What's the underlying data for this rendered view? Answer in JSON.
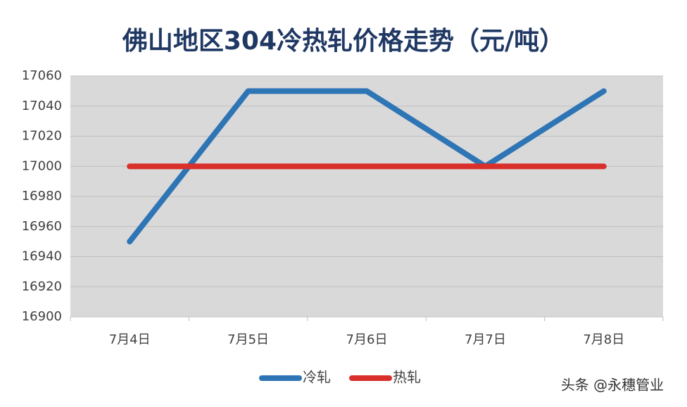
{
  "chart_data": {
    "type": "line",
    "title": "佛山地区304冷热轧价格走势（元/吨）",
    "categories": [
      "7月4日",
      "7月5日",
      "7月6日",
      "7月7日",
      "7月8日"
    ],
    "series": [
      {
        "name": "冷轧",
        "color": "#2e75b6",
        "values": [
          16950,
          17050,
          17050,
          17000,
          17050
        ]
      },
      {
        "name": "热轧",
        "color": "#d9302c",
        "values": [
          17000,
          17000,
          17000,
          17000,
          17000
        ]
      }
    ],
    "ylim": [
      16900,
      17060
    ],
    "yticks": [
      16900,
      16920,
      16940,
      16960,
      16980,
      17000,
      17020,
      17040,
      17060
    ],
    "grid": true,
    "legend": "bottom",
    "watermark": "头条 @永穗管业"
  }
}
